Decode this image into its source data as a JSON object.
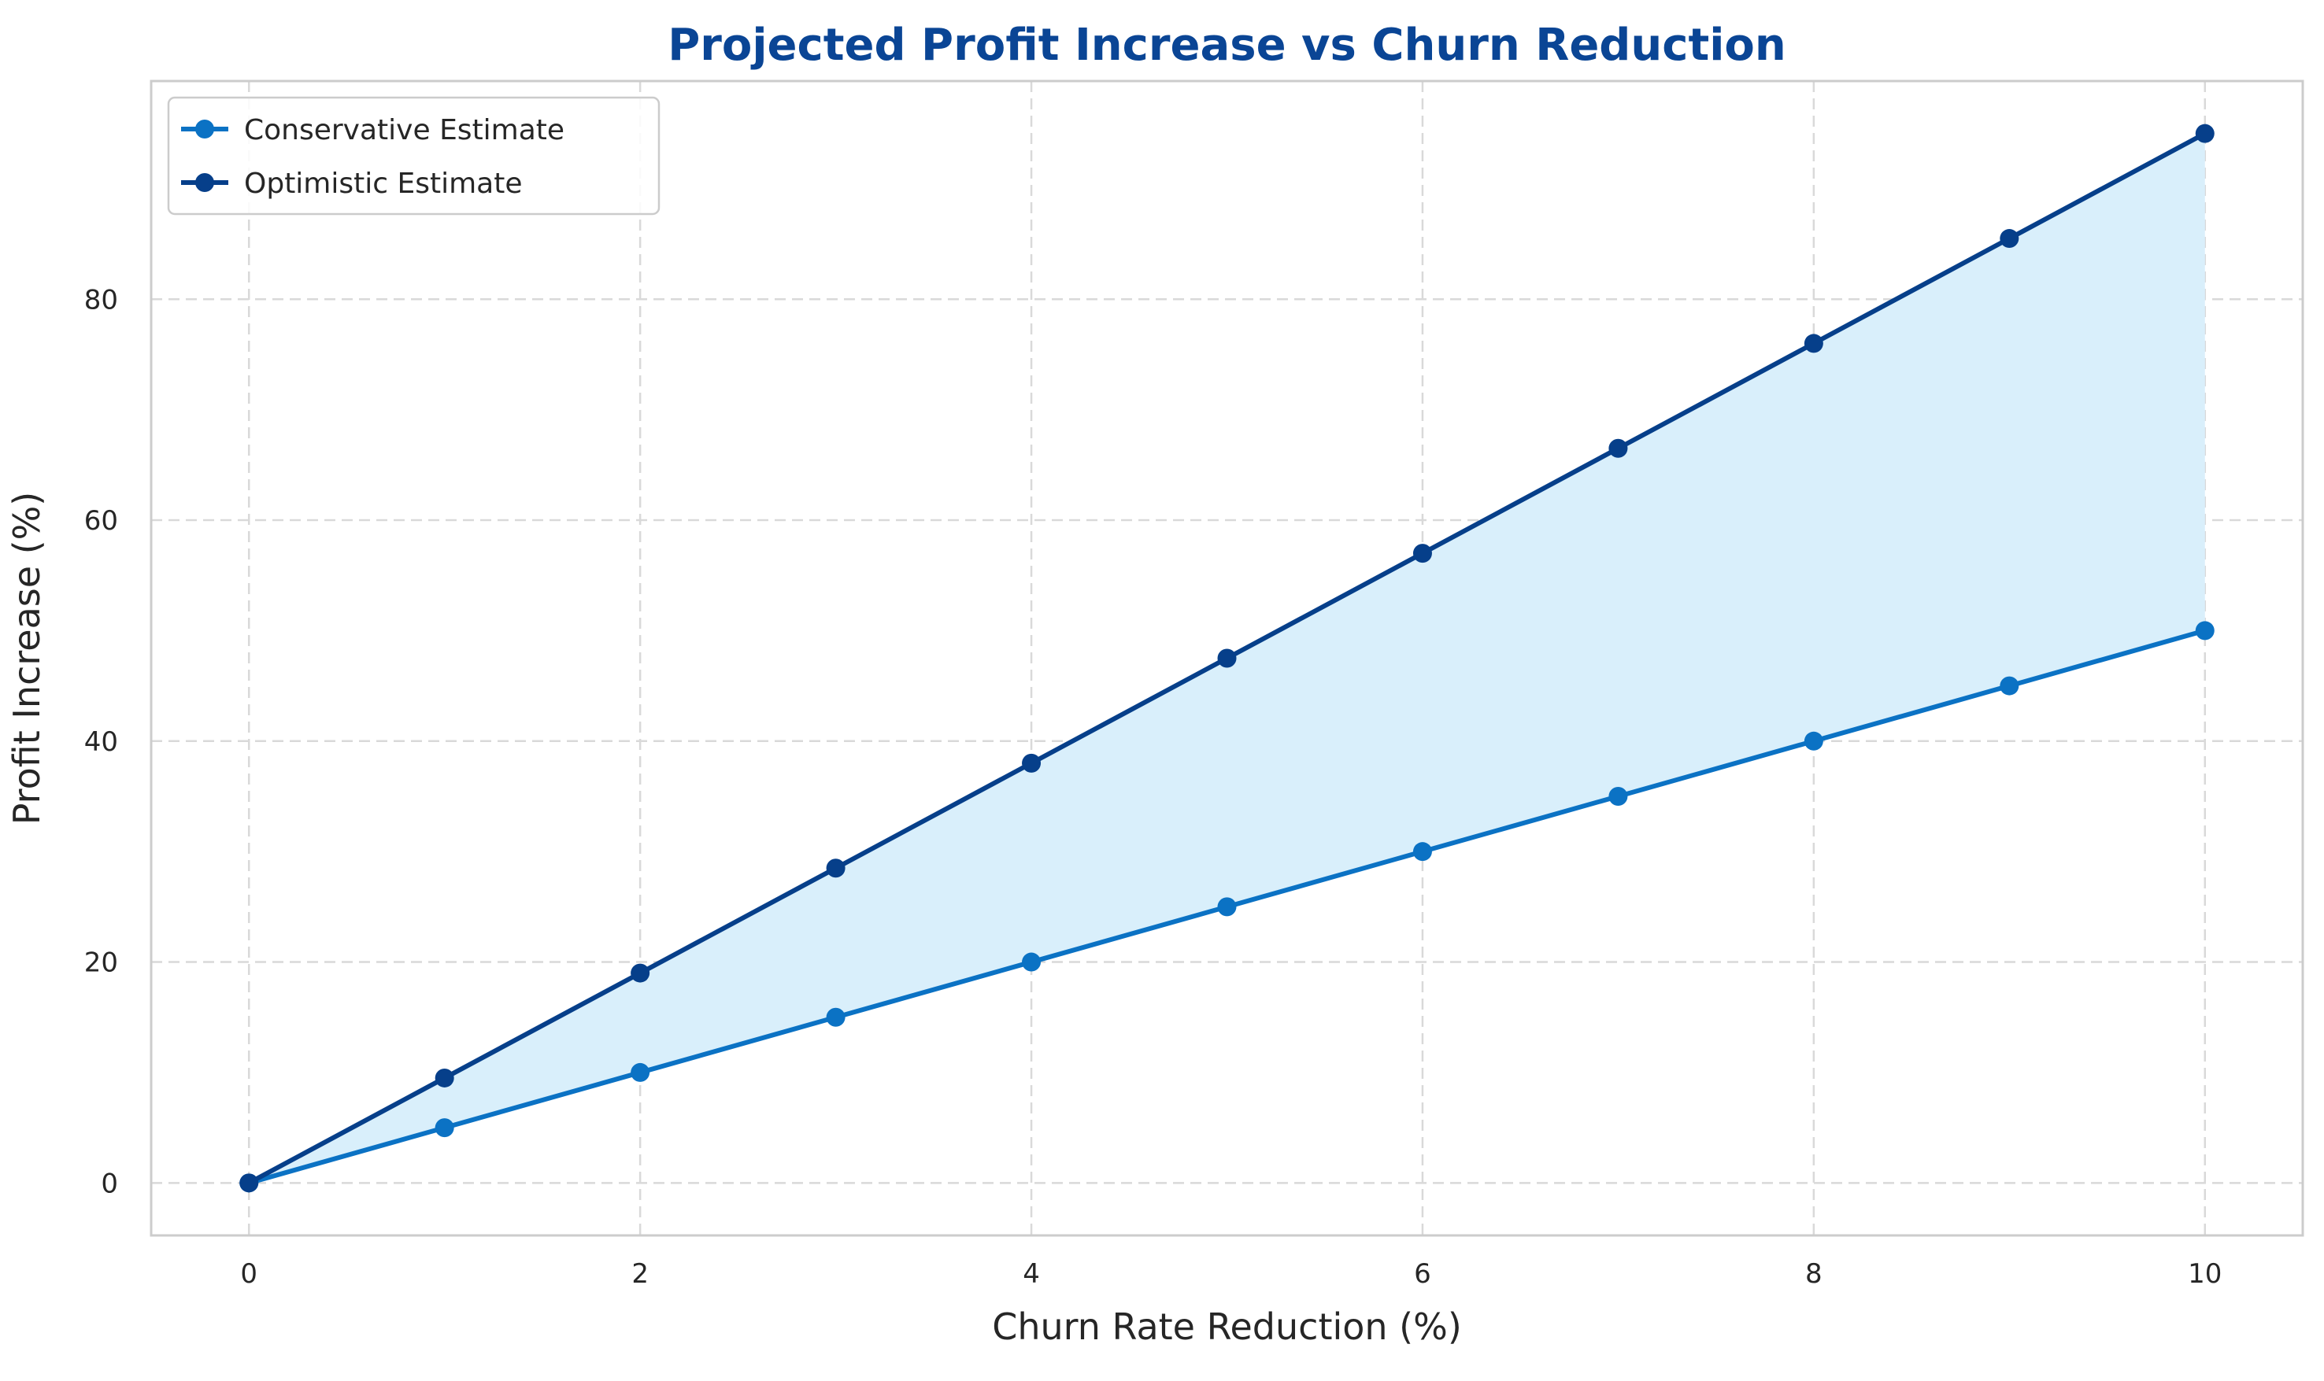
{
  "chart_data": {
    "type": "line",
    "title": "Projected Profit Increase vs Churn Reduction",
    "xlabel": "Churn Rate Reduction (%)",
    "ylabel": "Profit Increase (%)",
    "x": [
      0,
      1,
      2,
      3,
      4,
      5,
      6,
      7,
      8,
      9,
      10
    ],
    "series": [
      {
        "name": "Conservative Estimate",
        "color": "#0b72c4",
        "values": [
          0,
          5,
          10,
          15,
          20,
          25,
          30,
          35,
          40,
          45,
          50
        ]
      },
      {
        "name": "Optimistic Estimate",
        "color": "#063f8a",
        "values": [
          0,
          9.5,
          19,
          28.5,
          38,
          47.5,
          57,
          66.5,
          76,
          85.5,
          95
        ]
      }
    ],
    "fill_between": {
      "color": "#d9effb"
    },
    "xlim": [
      -0.5,
      10.5
    ],
    "ylim": [
      -4.75,
      99.75
    ],
    "xticks": [
      0,
      2,
      4,
      6,
      8,
      10
    ],
    "yticks": [
      0,
      20,
      40,
      60,
      80
    ],
    "grid": true,
    "legend_position": "top-left",
    "title_color": "#0a4595"
  }
}
